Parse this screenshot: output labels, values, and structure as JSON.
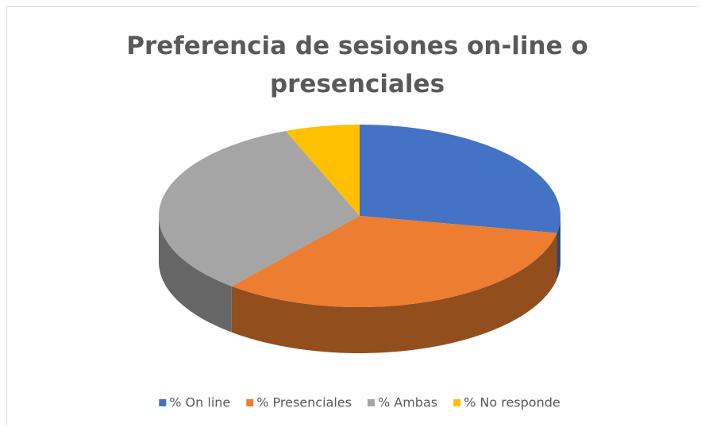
{
  "chart_data": {
    "type": "pie3d",
    "title": "Preferencia de sesiones on-line o presenciales",
    "categories": [
      "% On line",
      "% Presenciales",
      "% Ambas",
      "% No responde"
    ],
    "values": [
      28,
      33,
      33,
      6
    ],
    "colors": [
      "#4472c4",
      "#ed7d31",
      "#a5a5a5",
      "#ffc000"
    ],
    "legend": "bottom"
  }
}
